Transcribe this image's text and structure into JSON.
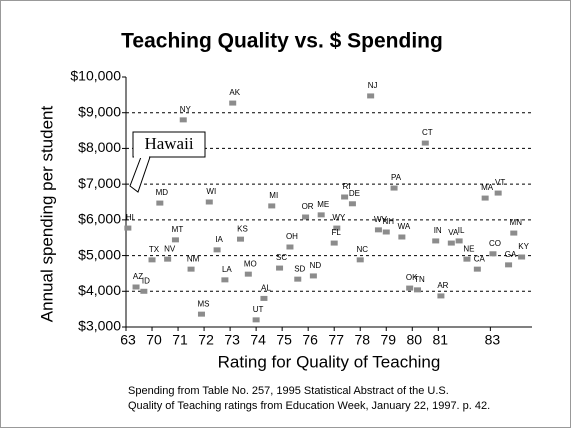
{
  "chart_data": {
    "type": "scatter",
    "title": "Teaching Quality vs. $ Spending",
    "x_label": "Rating for Quality of Teaching",
    "y_label": "Annual spending per student",
    "notes": [
      "Spending from Table No. 257, 1995 Statistical Abstract of the U.S.",
      "Quality of Teaching ratings from Education Week, January 22, 1997. p. 42."
    ],
    "annotation": "Hawaii",
    "xlim": [
      63,
      84.6
    ],
    "xticks": [
      63,
      70,
      71,
      72,
      73,
      74,
      75,
      76,
      77,
      78,
      79,
      80,
      81,
      83
    ],
    "ylim": [
      3000,
      10000
    ],
    "yticks": [
      {
        "value": 3000,
        "label": "$3,000"
      },
      {
        "value": 4000,
        "label": "$4,000"
      },
      {
        "value": 5000,
        "label": "$5,000"
      },
      {
        "value": 6000,
        "label": "$6,000"
      },
      {
        "value": 7000,
        "label": "$7,000"
      },
      {
        "value": 8000,
        "label": "$8,000"
      },
      {
        "value": 9000,
        "label": "$9,000"
      },
      {
        "value": 10000,
        "label": "$10,000"
      }
    ],
    "grid": true,
    "series": [
      {
        "color": "#8c8c8c",
        "labels": [
          "HI",
          "AZ",
          "ID",
          "TX",
          "NV",
          "MD",
          "MT",
          "NY",
          "NM",
          "MS",
          "WI",
          "IA",
          "LA",
          "KS",
          "AK",
          "MO",
          "UT",
          "AL",
          "MI",
          "SC",
          "OH",
          "SD",
          "ND",
          "OR",
          "ME",
          "WY",
          "FL",
          "RI",
          "DE",
          "NJ",
          "NC",
          "WV",
          "NH",
          "PA",
          "WA",
          "CT",
          "OK",
          "TN",
          "AR",
          "IN",
          "VA",
          "IL",
          "NE",
          "CA",
          "MA",
          "CO",
          "VT",
          "GA",
          "MN",
          "KY"
        ],
        "x": [
          63.5,
          65.7,
          67.8,
          70,
          70.6,
          70.3,
          70.9,
          71.2,
          71.5,
          71.9,
          72.2,
          72.5,
          72.8,
          73.4,
          73.1,
          73.7,
          74.0,
          74.3,
          74.6,
          74.9,
          75.3,
          75.6,
          76.2,
          75.9,
          76.5,
          77.1,
          77.0,
          77.4,
          77.7,
          78.4,
          78.0,
          78.7,
          79.0,
          79.3,
          79.6,
          80.5,
          79.9,
          80.2,
          81.1,
          80.9,
          81.5,
          81.8,
          82.1,
          82.5,
          82.8,
          83.1,
          83.3,
          83.7,
          83.9,
          84.2
        ],
        "values": [
          5770,
          4120,
          4000,
          4880,
          4900,
          6470,
          5440,
          8800,
          4620,
          3360,
          6500,
          5160,
          4320,
          5460,
          9270,
          4480,
          3200,
          3800,
          6390,
          4650,
          5240,
          4340,
          4430,
          6080,
          6140,
          5770,
          5350,
          6640,
          6450,
          9470,
          4880,
          5720,
          5660,
          6890,
          5520,
          8150,
          4090,
          4040,
          3870,
          5410,
          5350,
          5410,
          4900,
          4620,
          6610,
          5050,
          6750,
          4740,
          5630,
          4960
        ]
      }
    ]
  }
}
